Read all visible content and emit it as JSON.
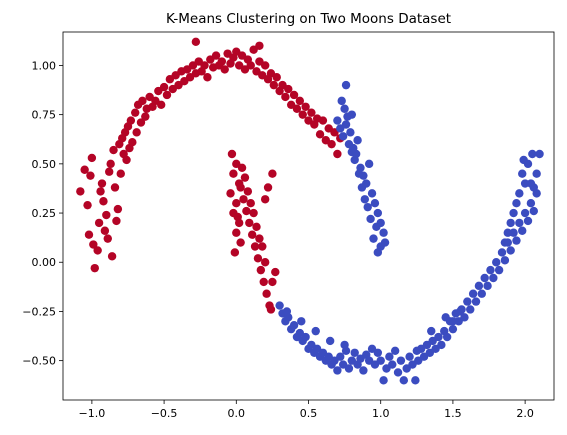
{
  "chart_data": {
    "type": "scatter",
    "title": "K-Means Clustering on Two Moons Dataset",
    "xlabel": "",
    "ylabel": "",
    "xlim": [
      -1.2,
      2.2
    ],
    "ylim": [
      -0.7,
      1.17
    ],
    "xticks": [
      -1.0,
      -0.5,
      0.0,
      0.5,
      1.0,
      1.5,
      2.0
    ],
    "xtick_labels": [
      "−1.0",
      "−0.5",
      "0.0",
      "0.5",
      "1.0",
      "1.5",
      "2.0"
    ],
    "yticks": [
      -0.5,
      -0.25,
      0.0,
      0.25,
      0.5,
      0.75,
      1.0
    ],
    "ytick_labels": [
      "−0.50",
      "−0.25",
      "0.00",
      "0.25",
      "0.50",
      "0.75",
      "1.00"
    ],
    "grid": false,
    "colors": {
      "cluster_red": "#b40426",
      "cluster_blue": "#3b4cc0"
    },
    "series": [
      {
        "color": "#b40426",
        "points": [
          [
            -1.08,
            0.36
          ],
          [
            -1.05,
            0.47
          ],
          [
            -1.03,
            0.29
          ],
          [
            -1.01,
            0.44
          ],
          [
            -1.0,
            0.53
          ],
          [
            -1.02,
            0.14
          ],
          [
            -0.99,
            0.09
          ],
          [
            -0.98,
            -0.03
          ],
          [
            -0.96,
            0.06
          ],
          [
            -0.95,
            0.2
          ],
          [
            -0.94,
            0.36
          ],
          [
            -0.93,
            0.4
          ],
          [
            -0.92,
            0.31
          ],
          [
            -0.91,
            0.16
          ],
          [
            -0.9,
            0.24
          ],
          [
            -0.89,
            0.12
          ],
          [
            -0.88,
            0.46
          ],
          [
            -0.87,
            0.5
          ],
          [
            -0.86,
            0.03
          ],
          [
            -0.85,
            0.57
          ],
          [
            -0.84,
            0.38
          ],
          [
            -0.83,
            0.21
          ],
          [
            -0.82,
            0.27
          ],
          [
            -0.81,
            0.6
          ],
          [
            -0.8,
            0.45
          ],
          [
            -0.79,
            0.63
          ],
          [
            -0.78,
            0.55
          ],
          [
            -0.77,
            0.66
          ],
          [
            -0.76,
            0.52
          ],
          [
            -0.75,
            0.69
          ],
          [
            -0.74,
            0.58
          ],
          [
            -0.73,
            0.72
          ],
          [
            -0.72,
            0.61
          ],
          [
            -0.7,
            0.76
          ],
          [
            -0.69,
            0.66
          ],
          [
            -0.68,
            0.8
          ],
          [
            -0.66,
            0.71
          ],
          [
            -0.65,
            0.82
          ],
          [
            -0.63,
            0.74
          ],
          [
            -0.62,
            0.78
          ],
          [
            -0.6,
            0.84
          ],
          [
            -0.58,
            0.79
          ],
          [
            -0.56,
            0.82
          ],
          [
            -0.54,
            0.87
          ],
          [
            -0.52,
            0.8
          ],
          [
            -0.5,
            0.89
          ],
          [
            -0.48,
            0.85
          ],
          [
            -0.46,
            0.93
          ],
          [
            -0.44,
            0.88
          ],
          [
            -0.42,
            0.95
          ],
          [
            -0.4,
            0.9
          ],
          [
            -0.38,
            0.97
          ],
          [
            -0.36,
            0.92
          ],
          [
            -0.34,
            0.98
          ],
          [
            -0.32,
            0.94
          ],
          [
            -0.3,
            1.0
          ],
          [
            -0.28,
            0.96
          ],
          [
            -0.26,
            1.02
          ],
          [
            -0.24,
            0.97
          ],
          [
            -0.22,
            1.0
          ],
          [
            -0.2,
            0.94
          ],
          [
            -0.18,
            1.03
          ],
          [
            -0.16,
            0.99
          ],
          [
            -0.14,
            1.05
          ],
          [
            -0.12,
            1.0
          ],
          [
            -0.1,
            1.02
          ],
          [
            -0.08,
            0.98
          ],
          [
            -0.06,
            1.06
          ],
          [
            -0.04,
            1.01
          ],
          [
            -0.02,
            1.04
          ],
          [
            0.0,
            1.07
          ],
          [
            0.02,
            1.0
          ],
          [
            0.04,
            1.05
          ],
          [
            0.06,
            0.98
          ],
          [
            0.08,
            1.03
          ],
          [
            0.1,
            1.0
          ],
          [
            0.12,
            1.08
          ],
          [
            0.14,
            0.97
          ],
          [
            0.16,
            1.02
          ],
          [
            0.18,
            0.95
          ],
          [
            0.2,
            1.0
          ],
          [
            0.22,
            0.93
          ],
          [
            0.24,
            0.96
          ],
          [
            0.26,
            0.9
          ],
          [
            0.28,
            0.94
          ],
          [
            0.3,
            0.87
          ],
          [
            0.32,
            0.9
          ],
          [
            0.34,
            0.84
          ],
          [
            0.36,
            0.88
          ],
          [
            0.38,
            0.8
          ],
          [
            0.4,
            0.85
          ],
          [
            0.42,
            0.78
          ],
          [
            0.44,
            0.82
          ],
          [
            0.46,
            0.75
          ],
          [
            0.48,
            0.79
          ],
          [
            0.5,
            0.72
          ],
          [
            0.52,
            0.76
          ],
          [
            0.54,
            0.7
          ],
          [
            0.56,
            0.73
          ],
          [
            0.58,
            0.65
          ],
          [
            0.6,
            0.72
          ],
          [
            0.62,
            0.62
          ],
          [
            0.64,
            0.68
          ],
          [
            0.66,
            0.6
          ],
          [
            0.68,
            0.66
          ],
          [
            0.7,
            0.55
          ],
          [
            0.72,
            0.63
          ],
          [
            -0.28,
            1.12
          ],
          [
            0.16,
            1.1
          ],
          [
            -0.03,
            0.55
          ],
          [
            0.0,
            0.5
          ],
          [
            -0.02,
            0.45
          ],
          [
            0.02,
            0.4
          ],
          [
            -0.04,
            0.35
          ],
          [
            0.0,
            0.3
          ],
          [
            -0.02,
            0.25
          ],
          [
            0.02,
            0.2
          ],
          [
            0.0,
            0.15
          ],
          [
            0.03,
            0.1
          ],
          [
            -0.01,
            0.05
          ],
          [
            0.01,
            0.23
          ],
          [
            0.03,
            0.38
          ],
          [
            0.05,
            0.32
          ],
          [
            0.07,
            0.26
          ],
          [
            0.09,
            0.2
          ],
          [
            0.11,
            0.14
          ],
          [
            0.13,
            0.08
          ],
          [
            0.15,
            0.02
          ],
          [
            0.17,
            -0.04
          ],
          [
            0.19,
            -0.1
          ],
          [
            0.21,
            -0.16
          ],
          [
            0.23,
            -0.22
          ],
          [
            0.25,
            -0.1
          ],
          [
            0.27,
            -0.05
          ],
          [
            0.2,
            0.0
          ],
          [
            0.18,
            0.08
          ],
          [
            0.16,
            0.12
          ],
          [
            0.14,
            0.18
          ],
          [
            0.12,
            0.25
          ],
          [
            0.1,
            0.3
          ],
          [
            0.08,
            0.36
          ],
          [
            0.06,
            0.43
          ],
          [
            0.04,
            0.48
          ],
          [
            0.25,
            0.45
          ],
          [
            0.22,
            0.38
          ],
          [
            0.2,
            0.32
          ],
          [
            0.24,
            -0.24
          ]
        ]
      },
      {
        "color": "#3b4cc0",
        "points": [
          [
            0.7,
            0.72
          ],
          [
            0.72,
            0.68
          ],
          [
            0.74,
            0.64
          ],
          [
            0.76,
            0.7
          ],
          [
            0.78,
            0.6
          ],
          [
            0.8,
            0.56
          ],
          [
            0.82,
            0.52
          ],
          [
            0.84,
            0.62
          ],
          [
            0.86,
            0.48
          ],
          [
            0.88,
            0.44
          ],
          [
            0.9,
            0.4
          ],
          [
            0.92,
            0.5
          ],
          [
            0.94,
            0.35
          ],
          [
            0.96,
            0.3
          ],
          [
            0.98,
            0.25
          ],
          [
            1.0,
            0.2
          ],
          [
            1.02,
            0.15
          ],
          [
            1.0,
            0.08
          ],
          [
            0.98,
            0.05
          ],
          [
            1.03,
            0.1
          ],
          [
            0.95,
            0.12
          ],
          [
            0.97,
            0.18
          ],
          [
            0.93,
            0.22
          ],
          [
            0.91,
            0.28
          ],
          [
            0.89,
            0.32
          ],
          [
            0.87,
            0.38
          ],
          [
            0.85,
            0.45
          ],
          [
            0.83,
            0.55
          ],
          [
            0.81,
            0.58
          ],
          [
            0.79,
            0.66
          ],
          [
            0.77,
            0.74
          ],
          [
            0.75,
            0.78
          ],
          [
            0.73,
            0.82
          ],
          [
            0.76,
            0.9
          ],
          [
            0.8,
            0.75
          ],
          [
            0.3,
            -0.22
          ],
          [
            0.32,
            -0.26
          ],
          [
            0.34,
            -0.3
          ],
          [
            0.36,
            -0.28
          ],
          [
            0.38,
            -0.34
          ],
          [
            0.4,
            -0.32
          ],
          [
            0.42,
            -0.38
          ],
          [
            0.44,
            -0.36
          ],
          [
            0.46,
            -0.4
          ],
          [
            0.48,
            -0.38
          ],
          [
            0.5,
            -0.44
          ],
          [
            0.52,
            -0.42
          ],
          [
            0.54,
            -0.46
          ],
          [
            0.56,
            -0.44
          ],
          [
            0.58,
            -0.48
          ],
          [
            0.6,
            -0.46
          ],
          [
            0.62,
            -0.5
          ],
          [
            0.64,
            -0.48
          ],
          [
            0.66,
            -0.52
          ],
          [
            0.68,
            -0.5
          ],
          [
            0.7,
            -0.55
          ],
          [
            0.72,
            -0.48
          ],
          [
            0.74,
            -0.52
          ],
          [
            0.76,
            -0.45
          ],
          [
            0.78,
            -0.54
          ],
          [
            0.8,
            -0.5
          ],
          [
            0.82,
            -0.46
          ],
          [
            0.84,
            -0.52
          ],
          [
            0.86,
            -0.49
          ],
          [
            0.88,
            -0.55
          ],
          [
            0.9,
            -0.47
          ],
          [
            0.92,
            -0.5
          ],
          [
            0.94,
            -0.44
          ],
          [
            0.96,
            -0.52
          ],
          [
            0.98,
            -0.46
          ],
          [
            1.0,
            -0.5
          ],
          [
            1.02,
            -0.6
          ],
          [
            1.04,
            -0.54
          ],
          [
            1.06,
            -0.48
          ],
          [
            1.08,
            -0.52
          ],
          [
            1.1,
            -0.45
          ],
          [
            1.12,
            -0.56
          ],
          [
            1.14,
            -0.5
          ],
          [
            1.16,
            -0.6
          ],
          [
            1.18,
            -0.54
          ],
          [
            1.2,
            -0.48
          ],
          [
            1.22,
            -0.52
          ],
          [
            1.24,
            -0.6
          ],
          [
            1.26,
            -0.5
          ],
          [
            1.28,
            -0.44
          ],
          [
            1.3,
            -0.48
          ],
          [
            1.32,
            -0.42
          ],
          [
            1.34,
            -0.46
          ],
          [
            1.36,
            -0.4
          ],
          [
            1.38,
            -0.44
          ],
          [
            1.4,
            -0.38
          ],
          [
            1.42,
            -0.42
          ],
          [
            1.44,
            -0.35
          ],
          [
            1.46,
            -0.38
          ],
          [
            1.48,
            -0.3
          ],
          [
            1.5,
            -0.34
          ],
          [
            1.52,
            -0.26
          ],
          [
            1.54,
            -0.3
          ],
          [
            1.56,
            -0.24
          ],
          [
            1.58,
            -0.28
          ],
          [
            1.6,
            -0.2
          ],
          [
            1.62,
            -0.24
          ],
          [
            1.64,
            -0.16
          ],
          [
            1.66,
            -0.2
          ],
          [
            1.68,
            -0.12
          ],
          [
            1.7,
            -0.16
          ],
          [
            1.72,
            -0.08
          ],
          [
            1.74,
            -0.12
          ],
          [
            1.76,
            -0.04
          ],
          [
            1.78,
            -0.08
          ],
          [
            1.8,
            0.0
          ],
          [
            1.82,
            -0.04
          ],
          [
            1.84,
            0.05
          ],
          [
            1.86,
            0.01
          ],
          [
            1.88,
            0.1
          ],
          [
            1.9,
            0.06
          ],
          [
            1.92,
            0.15
          ],
          [
            1.94,
            0.11
          ],
          [
            1.96,
            0.2
          ],
          [
            1.98,
            0.16
          ],
          [
            2.0,
            0.25
          ],
          [
            2.02,
            0.21
          ],
          [
            2.04,
            0.3
          ],
          [
            2.06,
            0.26
          ],
          [
            2.08,
            0.35
          ],
          [
            2.0,
            0.4
          ],
          [
            1.98,
            0.45
          ],
          [
            2.02,
            0.5
          ],
          [
            2.04,
            0.4
          ],
          [
            1.96,
            0.35
          ],
          [
            1.94,
            0.3
          ],
          [
            1.92,
            0.25
          ],
          [
            1.9,
            0.2
          ],
          [
            1.88,
            0.15
          ],
          [
            1.86,
            0.1
          ],
          [
            2.06,
            0.38
          ],
          [
            2.08,
            0.45
          ],
          [
            2.1,
            0.55
          ],
          [
            2.05,
            0.55
          ],
          [
            1.99,
            0.52
          ],
          [
            1.5,
            -0.3
          ],
          [
            1.55,
            -0.25
          ],
          [
            1.45,
            -0.28
          ],
          [
            1.35,
            -0.35
          ],
          [
            1.25,
            -0.45
          ],
          [
            0.35,
            -0.25
          ],
          [
            0.45,
            -0.3
          ],
          [
            0.55,
            -0.35
          ],
          [
            0.65,
            -0.4
          ],
          [
            0.75,
            -0.42
          ]
        ]
      }
    ]
  }
}
